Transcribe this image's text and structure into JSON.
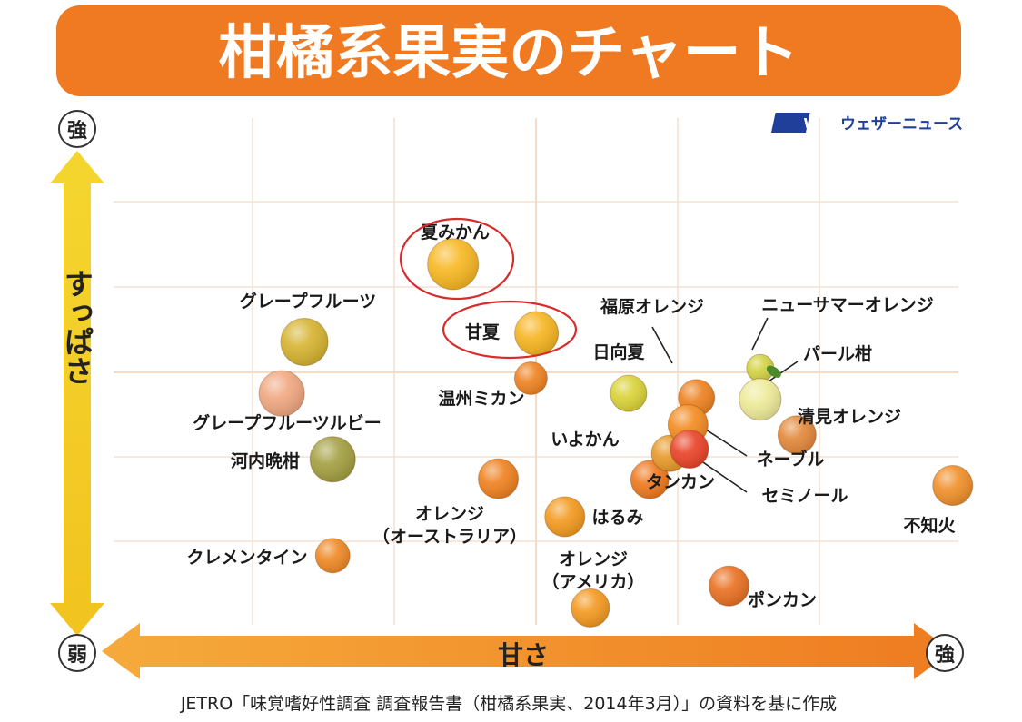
{
  "title": "柑橘系果実のチャート",
  "brand": {
    "logo_text": "WN",
    "name": "ウェザーニュース",
    "color": "#1f3f9a"
  },
  "colors": {
    "title_bar": "#f07a22",
    "grid": "#f5dcc8",
    "y_arrow": "#f4d02b",
    "x_arrow": "#f08a2a"
  },
  "source": "JETRO「味覚嗜好性調査 調査報告書（柑橘系果実、2014年3月）」の資料を基に作成",
  "chart_data": {
    "type": "scatter",
    "title": "柑橘系果実のチャート",
    "xlabel": "甘さ",
    "ylabel": "すっぱさ",
    "x_low_label": "弱",
    "x_high_label": "強",
    "y_low_label": "弱",
    "y_high_label": "強",
    "xlim": [
      0,
      6
    ],
    "ylim": [
      0,
      6
    ],
    "grid": true,
    "points": [
      {
        "name": "夏みかん",
        "x": 2.43,
        "y": 4.27,
        "color": "#f7b824",
        "highlight": true
      },
      {
        "name": "甘夏",
        "x": 3.02,
        "y": 3.45,
        "color": "#f6b624",
        "highlight": true
      },
      {
        "name": "グレープフルーツ",
        "x": 1.38,
        "y": 3.35,
        "color": "#d6b433"
      },
      {
        "name": "グレープフルーツルビー",
        "x": 1.22,
        "y": 2.74,
        "color": "#f0a882"
      },
      {
        "name": "河内晩柑",
        "x": 1.58,
        "y": 1.96,
        "color": "#a4a043"
      },
      {
        "name": "クレメンタイン",
        "x": 1.58,
        "y": 0.82,
        "color": "#ef8a28"
      },
      {
        "name": "温州ミカン",
        "x": 2.98,
        "y": 2.92,
        "color": "#ee8424"
      },
      {
        "name": "オレンジ（オーストラリア）",
        "x": 2.75,
        "y": 1.73,
        "color": "#ef8222"
      },
      {
        "name": "はるみ",
        "x": 3.22,
        "y": 1.28,
        "color": "#f39b22"
      },
      {
        "name": "オレンジ（アメリカ）",
        "x": 3.4,
        "y": 0.2,
        "color": "#f39a22"
      },
      {
        "name": "日向夏",
        "x": 3.67,
        "y": 2.74,
        "color": "#dad33a"
      },
      {
        "name": "福原オレンジ",
        "x": 4.15,
        "y": 2.69,
        "color": "#ee8323"
      },
      {
        "name": "タンカン",
        "x": 3.82,
        "y": 1.72,
        "color": "#ee7a20"
      },
      {
        "name": "いよかん",
        "x": 3.96,
        "y": 2.03,
        "color": "#e89a2c"
      },
      {
        "name": "ネーブル",
        "x": 4.09,
        "y": 2.37,
        "color": "#f38d24"
      },
      {
        "name": "セミノール",
        "x": 4.1,
        "y": 2.08,
        "color": "#e9452a"
      },
      {
        "name": "ニューサマーオレンジ",
        "x": 4.6,
        "y": 3.04,
        "color": "#d3d347"
      },
      {
        "name": "パール柑",
        "x": 4.6,
        "y": 2.67,
        "color": "#eeeb9a"
      },
      {
        "name": "清見オレンジ",
        "x": 4.86,
        "y": 2.25,
        "color": "#e38a3e"
      },
      {
        "name": "ポンカン",
        "x": 4.38,
        "y": 0.46,
        "color": "#e97225"
      },
      {
        "name": "不知火",
        "x": 5.96,
        "y": 1.65,
        "color": "#f0902c"
      }
    ]
  }
}
